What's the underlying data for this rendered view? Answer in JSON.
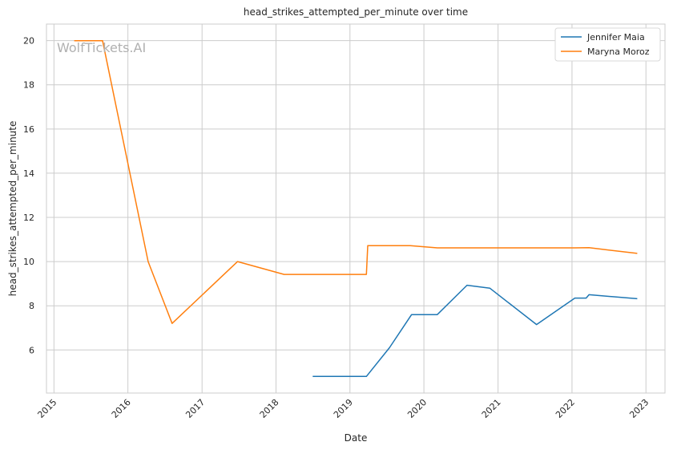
{
  "chart_data": {
    "type": "line",
    "title": "head_strikes_attempted_per_minute over time",
    "xlabel": "Date",
    "ylabel": "head_strikes_attempted_per_minute",
    "watermark": "WolfTickets.AI",
    "xlim": [
      "2014-11-25",
      "2023-04-05"
    ],
    "ylim": [
      4.05,
      20.75
    ],
    "x_ticks": [
      "2015",
      "2016",
      "2017",
      "2018",
      "2019",
      "2020",
      "2021",
      "2022",
      "2023"
    ],
    "y_ticks": [
      6,
      8,
      10,
      12,
      14,
      16,
      18,
      20
    ],
    "grid": true,
    "legend_position": "top-right",
    "series": [
      {
        "name": "Jennifer Maia",
        "color": "#1f77b4",
        "points": [
          {
            "x": "2018-07-01",
            "y": 4.8
          },
          {
            "x": "2019-03-23",
            "y": 4.8
          },
          {
            "x": "2019-07-15",
            "y": 6.1
          },
          {
            "x": "2019-11-01",
            "y": 7.6
          },
          {
            "x": "2020-03-07",
            "y": 7.6
          },
          {
            "x": "2020-08-01",
            "y": 8.93
          },
          {
            "x": "2020-11-21",
            "y": 8.8
          },
          {
            "x": "2021-07-10",
            "y": 7.15
          },
          {
            "x": "2022-01-15",
            "y": 8.35
          },
          {
            "x": "2022-03-12",
            "y": 8.35
          },
          {
            "x": "2022-03-26",
            "y": 8.5
          },
          {
            "x": "2022-11-19",
            "y": 8.32
          }
        ]
      },
      {
        "name": "Maryna Moroz",
        "color": "#ff7f0e",
        "points": [
          {
            "x": "2015-04-11",
            "y": 20.0
          },
          {
            "x": "2015-08-29",
            "y": 20.0
          },
          {
            "x": "2016-04-10",
            "y": 10.0
          },
          {
            "x": "2016-08-06",
            "y": 7.2
          },
          {
            "x": "2017-06-25",
            "y": 10.0
          },
          {
            "x": "2018-02-10",
            "y": 9.42
          },
          {
            "x": "2019-03-23",
            "y": 9.42
          },
          {
            "x": "2019-03-30",
            "y": 10.72
          },
          {
            "x": "2019-10-26",
            "y": 10.72
          },
          {
            "x": "2020-03-07",
            "y": 10.62
          },
          {
            "x": "2022-01-15",
            "y": 10.62
          },
          {
            "x": "2022-03-26",
            "y": 10.63
          },
          {
            "x": "2022-11-19",
            "y": 10.37
          }
        ]
      }
    ]
  }
}
